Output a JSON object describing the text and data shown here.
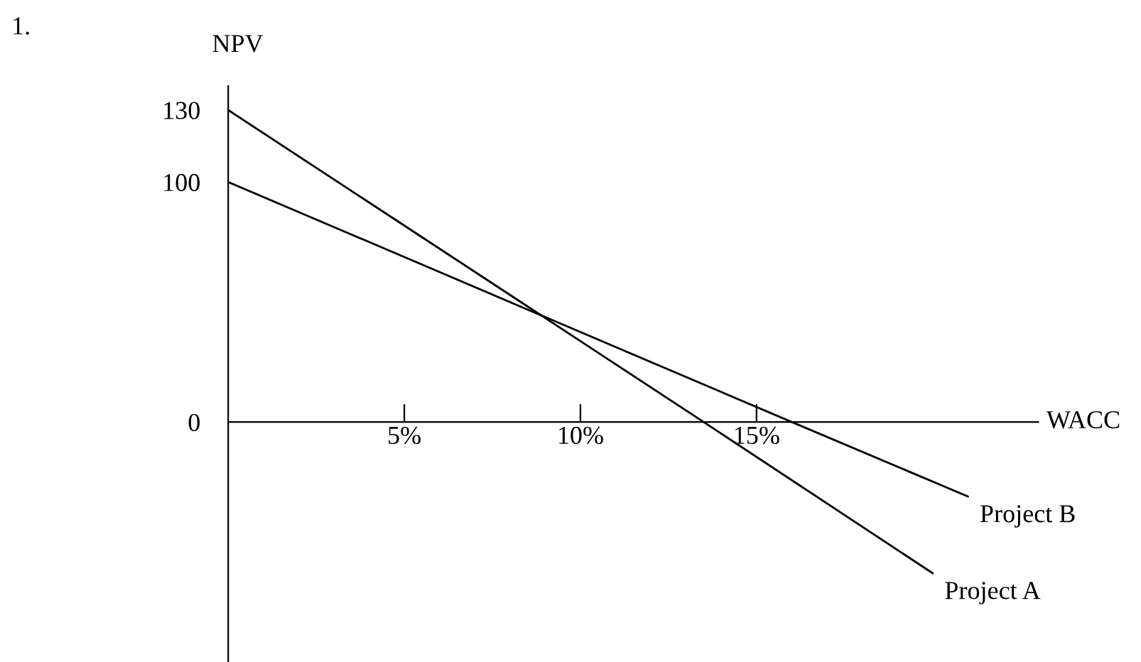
{
  "chart_data": {
    "type": "line",
    "xlabel": "WACC",
    "ylabel": "NPV",
    "annotations": [
      "1."
    ],
    "series": [
      {
        "name": "Project A",
        "color": "#000000",
        "x": [
          0,
          13.5,
          20
        ],
        "values": [
          130,
          0,
          -63
        ]
      },
      {
        "name": "Project B",
        "color": "#000000",
        "x": [
          0,
          16,
          21
        ],
        "values": [
          100,
          0,
          -31
        ]
      }
    ],
    "xlim": [
      0,
      23
    ],
    "ylim": [
      -100,
      140
    ],
    "xticks": [
      {
        "value": 5,
        "label": "5%"
      },
      {
        "value": 10,
        "label": "10%"
      },
      {
        "value": 15,
        "label": "15%"
      }
    ],
    "yticks": [
      0,
      100,
      130
    ],
    "grid": false,
    "legend": false,
    "marker": "none",
    "line_style": "solid"
  }
}
